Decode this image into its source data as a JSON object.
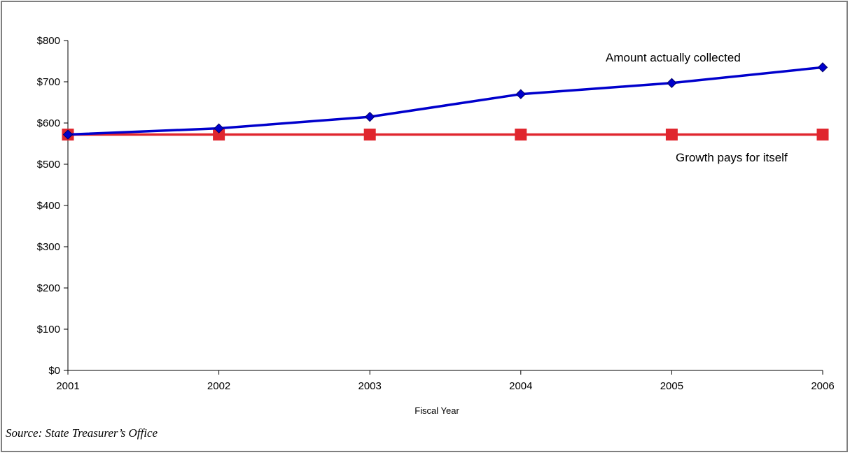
{
  "chart_data": {
    "type": "line",
    "title": "",
    "xlabel": "Fiscal Year",
    "ylabel": "",
    "categories": [
      "2001",
      "2002",
      "2003",
      "2004",
      "2005",
      "2006"
    ],
    "ylim": [
      0,
      800
    ],
    "yticks": [
      "$0",
      "$100",
      "$200",
      "$300",
      "$400",
      "$500",
      "$600",
      "$700",
      "$800"
    ],
    "grid": false,
    "series": [
      {
        "name": "Amount actually collected",
        "color": "#0000cc",
        "marker": "diamond",
        "values": [
          572,
          587,
          615,
          670,
          697,
          735
        ]
      },
      {
        "name": "Growth pays for itself",
        "color": "#e0262e",
        "marker": "square",
        "values": [
          572,
          572,
          572,
          572,
          572,
          572
        ]
      }
    ]
  },
  "source": "Source: State Treasurer’s Office"
}
